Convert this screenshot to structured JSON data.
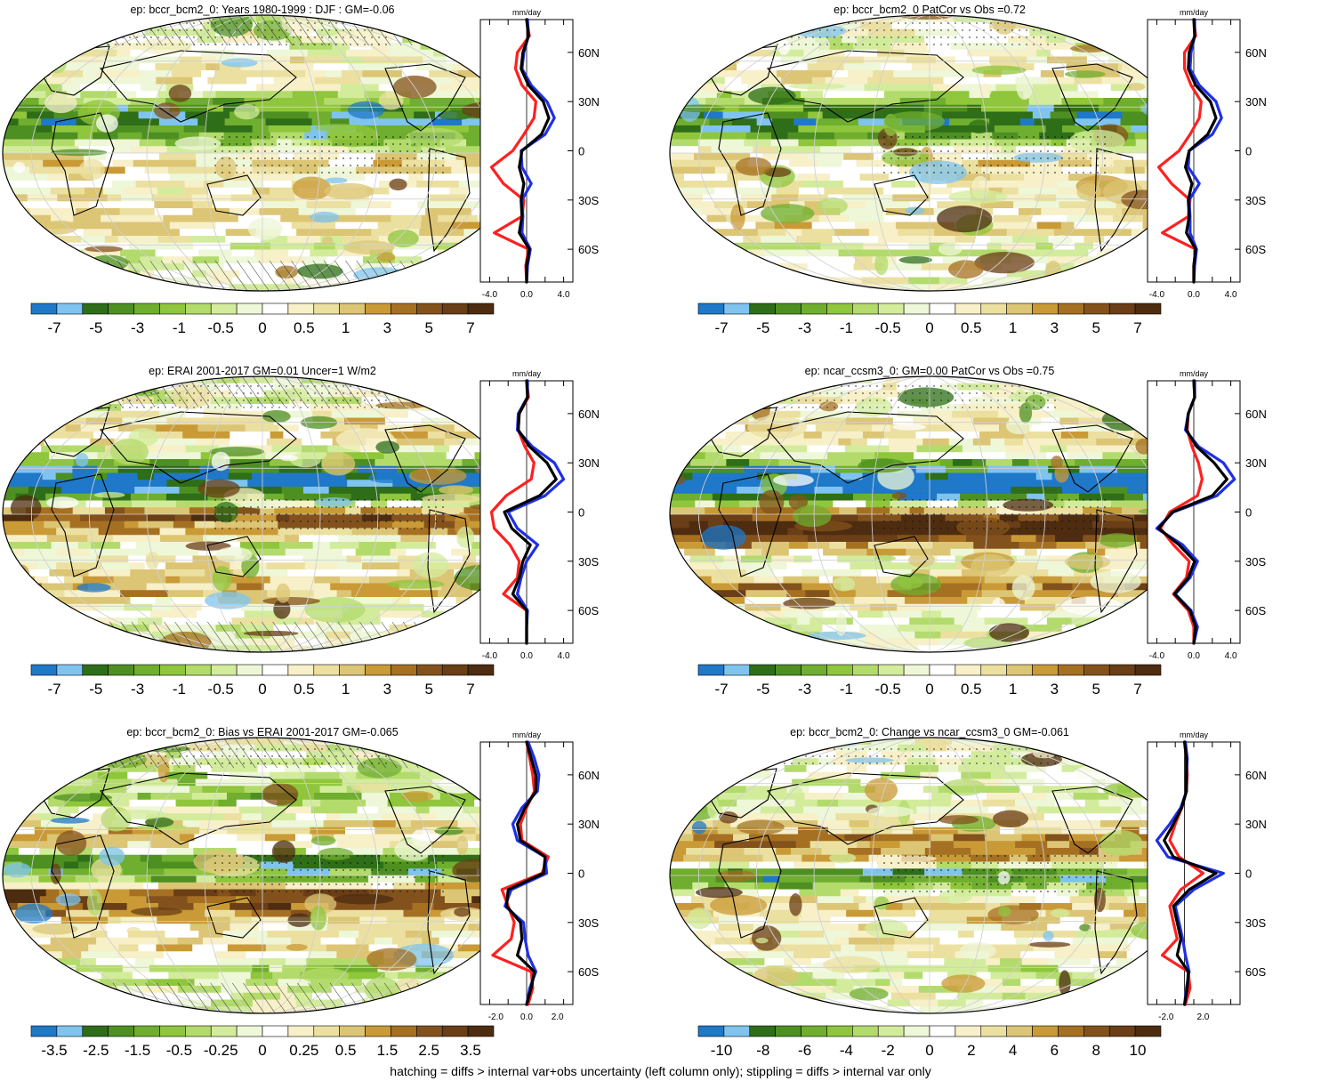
{
  "footer_note": "hatching = diffs > internal var+obs uncertainty (left column only); stippling = diffs > internal var only",
  "colors": {
    "palette": [
      "#1f78c8",
      "#7fc4ef",
      "#2e6e18",
      "#4e8f22",
      "#6fae2e",
      "#8fc63c",
      "#b3db6c",
      "#d3ec9c",
      "#eef7d8",
      "#ffffff",
      "#f7f0c8",
      "#ece0a0",
      "#dcc574",
      "#c99a36",
      "#a67022",
      "#83521c",
      "#6a3e16",
      "#4e2c10"
    ],
    "obs_line": "#ff2020",
    "model_line": "#1f2fe8",
    "mean_line": "#000000",
    "gridline": "#d0d0d0"
  },
  "chart_data": [
    {
      "type": "heatmap",
      "title": "ep: bccr_bcm2_0: Years 1980-1999 : DJF : GM=-0.06",
      "colorbar_labels": [
        "-7",
        "-5",
        "-3",
        "-1",
        "-0.5",
        "0",
        "0.5",
        "1",
        "3",
        "5",
        "7"
      ],
      "hatching": true,
      "stippling": true,
      "zonal_profile": {
        "unit_label": "mm/day",
        "xtick_labels": [
          "-4.0",
          "0.0",
          "4.0"
        ],
        "ytick_labels": [
          "60N",
          "30N",
          "0",
          "30S",
          "60S"
        ],
        "xlim": [
          -5,
          5
        ],
        "ylim": [
          -80,
          80
        ],
        "lat": [
          80,
          70,
          60,
          50,
          40,
          30,
          20,
          10,
          0,
          -10,
          -20,
          -30,
          -40,
          -50,
          -60,
          -70,
          -80
        ],
        "series": [
          {
            "color": "red",
            "values": [
              0.0,
              0.3,
              -1.0,
              -1.2,
              -0.5,
              1.0,
              0.8,
              -0.3,
              -1.5,
              -3.8,
              -2.5,
              -0.3,
              -0.5,
              -3.5,
              0.2,
              -0.1,
              0.0
            ]
          },
          {
            "color": "blue",
            "values": [
              0.1,
              0.2,
              -0.3,
              -0.5,
              0.5,
              2.2,
              3.0,
              2.0,
              -0.6,
              -0.5,
              0.5,
              -0.5,
              -0.4,
              -0.5,
              0.4,
              0.1,
              0.0
            ]
          },
          {
            "color": "black",
            "values": [
              0.0,
              0.2,
              -0.4,
              -0.6,
              0.2,
              1.8,
              2.4,
              1.6,
              -0.5,
              -0.8,
              -0.3,
              -0.6,
              -0.5,
              -0.8,
              0.3,
              0.0,
              0.0
            ]
          }
        ]
      }
    },
    {
      "type": "heatmap",
      "title": "ep: bccr_bcm2_0 PatCor vs Obs =0.72",
      "colorbar_labels": [
        "-7",
        "-5",
        "-3",
        "-1",
        "-0.5",
        "0",
        "0.5",
        "1",
        "3",
        "5",
        "7"
      ],
      "hatching": false,
      "stippling": true,
      "zonal_profile": {
        "unit_label": "mm/day",
        "xtick_labels": [
          "-4.0",
          "0.0",
          "4.0"
        ],
        "ytick_labels": [
          "60N",
          "30N",
          "0",
          "30S",
          "60S"
        ],
        "xlim": [
          -5,
          5
        ],
        "ylim": [
          -80,
          80
        ],
        "lat": [
          80,
          70,
          60,
          50,
          40,
          30,
          20,
          10,
          0,
          -10,
          -20,
          -30,
          -40,
          -50,
          -60,
          -70,
          -80
        ],
        "series": [
          {
            "color": "red",
            "values": [
              0.0,
              0.2,
              -1.0,
              -1.0,
              -0.3,
              0.8,
              0.6,
              -0.4,
              -1.6,
              -3.8,
              -2.4,
              -0.4,
              -0.6,
              -3.4,
              0.2,
              0.0,
              0.0
            ]
          },
          {
            "color": "blue",
            "values": [
              0.1,
              0.1,
              -0.3,
              -0.4,
              0.6,
              2.4,
              3.0,
              2.0,
              -0.5,
              -0.6,
              0.6,
              -0.5,
              -0.4,
              -0.4,
              0.3,
              0.1,
              0.0
            ]
          },
          {
            "color": "black",
            "values": [
              0.0,
              0.1,
              -0.5,
              -0.6,
              0.2,
              1.8,
              2.4,
              1.5,
              -0.5,
              -0.9,
              -0.2,
              -0.6,
              -0.5,
              -0.8,
              0.2,
              0.0,
              0.0
            ]
          }
        ]
      }
    },
    {
      "type": "heatmap",
      "title": "ep: ERAI 2001-2017 GM=0.01 Uncer=1 W/m2",
      "colorbar_labels": [
        "-7",
        "-5",
        "-3",
        "-1",
        "-0.5",
        "0",
        "0.5",
        "1",
        "3",
        "5",
        "7"
      ],
      "hatching": true,
      "stippling": true,
      "zonal_profile": {
        "unit_label": "mm/day",
        "xtick_labels": [
          "-4.0",
          "0.0",
          "4.0"
        ],
        "ytick_labels": [
          "60N",
          "30N",
          "0",
          "30S",
          "60S"
        ],
        "xlim": [
          -5,
          5
        ],
        "ylim": [
          -80,
          80
        ],
        "lat": [
          80,
          70,
          60,
          50,
          40,
          30,
          20,
          10,
          0,
          -10,
          -20,
          -30,
          -40,
          -50,
          -60,
          -70,
          -80
        ],
        "series": [
          {
            "color": "red",
            "values": [
              0.0,
              0.2,
              -0.8,
              -0.9,
              -0.2,
              0.8,
              0.5,
              -2.2,
              -3.8,
              -3.5,
              -1.8,
              -0.8,
              -1.0,
              -2.5,
              0.0,
              0.0,
              0.0
            ]
          },
          {
            "color": "blue",
            "values": [
              0.1,
              0.1,
              -0.9,
              -1.0,
              0.6,
              3.0,
              4.0,
              2.0,
              -2.0,
              -1.0,
              1.2,
              0.0,
              -0.6,
              -1.0,
              0.1,
              0.0,
              0.0
            ]
          },
          {
            "color": "black",
            "values": [
              0.0,
              0.1,
              -0.8,
              -0.9,
              0.3,
              2.2,
              3.2,
              1.4,
              -2.4,
              -1.6,
              0.4,
              -0.4,
              -0.8,
              -1.5,
              0.0,
              0.0,
              0.0
            ]
          }
        ]
      }
    },
    {
      "type": "heatmap",
      "title": "ep: ncar_ccsm3_0: GM=0.00 PatCor vs Obs =0.75",
      "colorbar_labels": [
        "-7",
        "-5",
        "-3",
        "-1",
        "-0.5",
        "0",
        "0.5",
        "1",
        "3",
        "5",
        "7"
      ],
      "hatching": false,
      "stippling": true,
      "zonal_profile": {
        "unit_label": "mm/day",
        "xtick_labels": [
          "-4.0",
          "0.0",
          "4.0"
        ],
        "ytick_labels": [
          "60N",
          "30N",
          "0",
          "30S",
          "60S"
        ],
        "xlim": [
          -5,
          5
        ],
        "ylim": [
          -80,
          80
        ],
        "lat": [
          80,
          70,
          60,
          50,
          40,
          30,
          20,
          10,
          0,
          -10,
          -20,
          -30,
          -40,
          -50,
          -60,
          -70,
          -80
        ],
        "series": [
          {
            "color": "red",
            "values": [
              0.0,
              0.1,
              -0.6,
              -0.7,
              -0.2,
              0.5,
              0.9,
              0.4,
              -2.6,
              -3.6,
              -2.2,
              -0.5,
              -0.8,
              -2.2,
              -0.6,
              0.0,
              0.0
            ]
          },
          {
            "color": "blue",
            "values": [
              0.1,
              0.1,
              -0.6,
              -0.9,
              0.5,
              3.2,
              4.4,
              2.5,
              -2.2,
              -4.0,
              -1.2,
              0.4,
              -0.4,
              -2.0,
              -0.3,
              0.4,
              0.0
            ]
          },
          {
            "color": "black",
            "values": [
              0.0,
              0.1,
              -0.6,
              -0.8,
              0.3,
              2.2,
              3.6,
              2.0,
              -2.3,
              -3.8,
              -1.6,
              0.1,
              -0.6,
              -2.1,
              -0.4,
              0.2,
              0.0
            ]
          }
        ]
      }
    },
    {
      "type": "heatmap",
      "title": "ep: bccr_bcm2_0: Bias vs ERAI 2001-2017 GM=-0.065",
      "colorbar_labels": [
        "-3.5",
        "-2.5",
        "-1.5",
        "-0.5",
        "-0.25",
        "0",
        "0.25",
        "0.5",
        "1.5",
        "2.5",
        "3.5"
      ],
      "hatching": true,
      "stippling": true,
      "zonal_profile": {
        "unit_label": "mm/day",
        "xtick_labels": [
          "-2.0",
          "0.0",
          "2.0"
        ],
        "ytick_labels": [
          "60N",
          "30N",
          "0",
          "30S",
          "60S"
        ],
        "xlim": [
          -3,
          3
        ],
        "ylim": [
          -80,
          80
        ],
        "lat": [
          80,
          70,
          60,
          50,
          40,
          30,
          20,
          10,
          0,
          -10,
          -20,
          -30,
          -40,
          -50,
          -60,
          -70,
          -80
        ],
        "series": [
          {
            "color": "red",
            "values": [
              0.0,
              0.2,
              0.4,
              0.5,
              0.0,
              -0.4,
              -0.3,
              1.4,
              1.0,
              -1.6,
              -1.2,
              -0.8,
              -1.0,
              -2.2,
              0.3,
              0.4,
              0.1
            ]
          },
          {
            "color": "blue",
            "values": [
              0.1,
              0.5,
              0.8,
              0.7,
              -0.3,
              -0.9,
              -0.6,
              1.2,
              1.3,
              -1.0,
              -1.4,
              -0.2,
              -0.1,
              0.1,
              0.6,
              0.2,
              0.0
            ]
          },
          {
            "color": "black",
            "values": [
              0.0,
              0.3,
              0.6,
              0.6,
              -0.1,
              -0.6,
              -0.4,
              1.2,
              1.1,
              -1.2,
              -1.3,
              -0.4,
              -0.3,
              -0.6,
              0.5,
              0.3,
              0.0
            ]
          }
        ]
      }
    },
    {
      "type": "heatmap",
      "title": "ep: bccr_bcm2_0: Change vs ncar_ccsm3_0 GM=-0.061",
      "colorbar_labels": [
        "-10",
        "-8",
        "-6",
        "-4",
        "-2",
        "0",
        "2",
        "4",
        "6",
        "8",
        "10"
      ],
      "hatching": false,
      "stippling": true,
      "zonal_profile": {
        "unit_label": "mm/day",
        "xtick_labels": [
          "-2.0",
          "2.0"
        ],
        "ytick_labels": [
          "60N",
          "30N",
          "0",
          "30S",
          "60S"
        ],
        "xlim": [
          -4,
          6
        ],
        "ylim": [
          -80,
          80
        ],
        "lat": [
          80,
          70,
          60,
          50,
          40,
          30,
          20,
          10,
          0,
          -10,
          -20,
          -30,
          -40,
          -50,
          -60,
          -70,
          -80
        ],
        "series": [
          {
            "color": "red",
            "values": [
              0.0,
              0.2,
              0.3,
              0.2,
              -0.3,
              -1.0,
              -1.6,
              -0.6,
              2.0,
              -0.4,
              -1.6,
              -1.2,
              -0.8,
              -2.4,
              0.4,
              0.6,
              0.1
            ]
          },
          {
            "color": "blue",
            "values": [
              0.1,
              0.3,
              0.2,
              0.2,
              -0.4,
              -1.6,
              -3.0,
              -1.8,
              4.2,
              1.0,
              -1.0,
              -0.6,
              -0.2,
              0.1,
              0.5,
              0.2,
              0.0
            ]
          },
          {
            "color": "black",
            "values": [
              0.0,
              0.2,
              0.2,
              0.2,
              -0.3,
              -1.2,
              -2.2,
              -1.2,
              3.4,
              0.5,
              -1.2,
              -0.8,
              -0.4,
              -0.8,
              0.4,
              0.3,
              0.0
            ]
          }
        ]
      }
    }
  ]
}
